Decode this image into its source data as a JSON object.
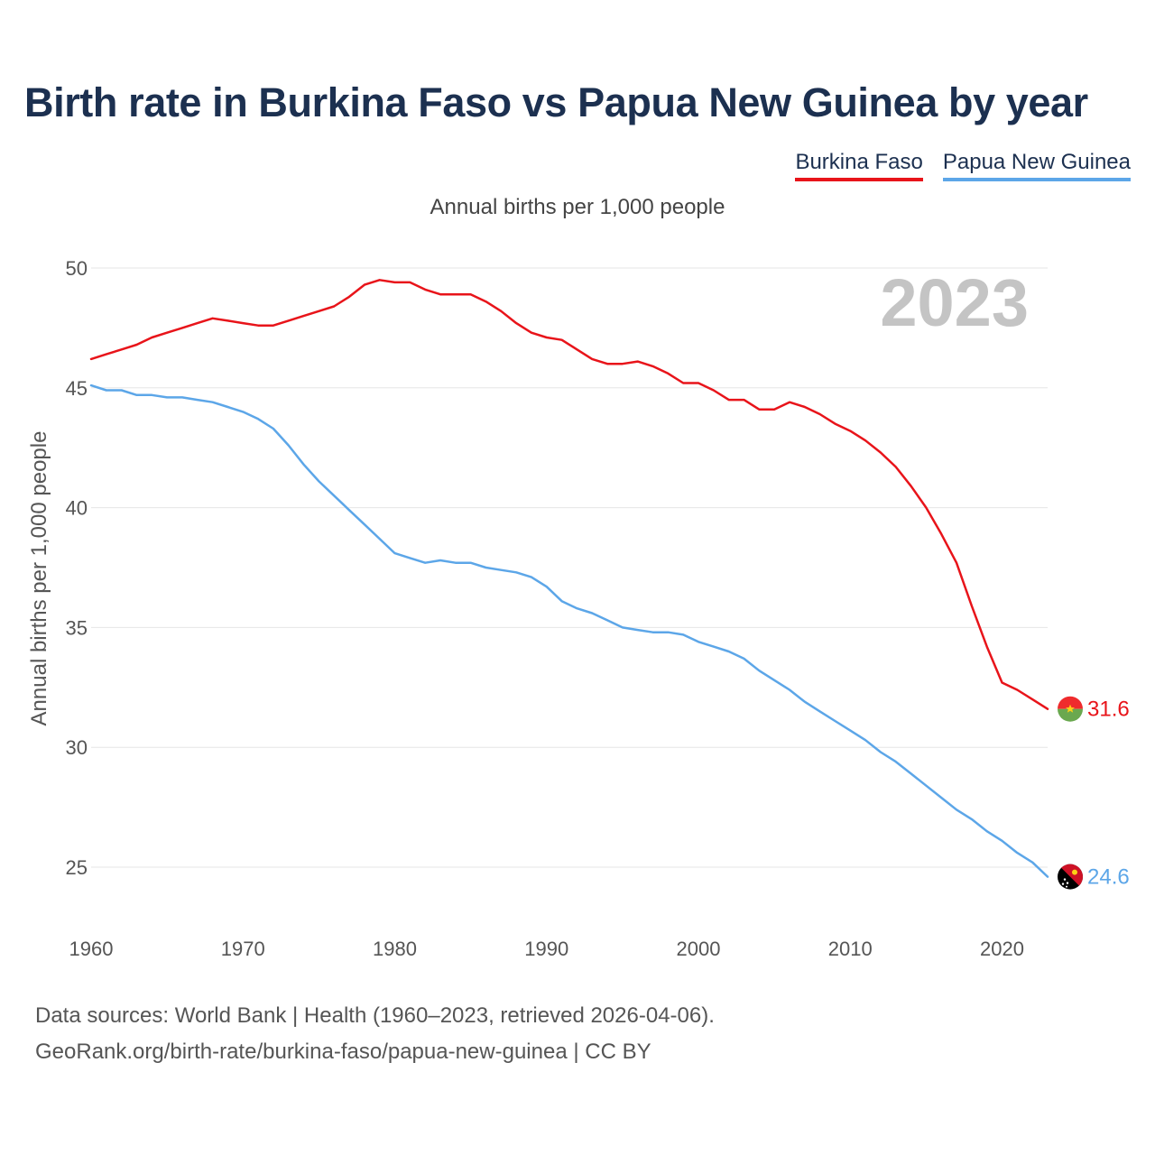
{
  "title": "Birth rate in Burkina Faso vs Papua New Guinea by year",
  "subtitle": "Annual births per 1,000 people",
  "legend": [
    {
      "label": "Burkina Faso",
      "color": "#e8141a"
    },
    {
      "label": "Papua New Guinea",
      "color": "#5ca6e8"
    }
  ],
  "year_display": "2023",
  "source_line1": "Data sources: World Bank | Health (1960–2023, retrieved 2026-04-06).",
  "source_line2": "GeoRank.org/birth-rate/burkina-faso/papua-new-guinea | CC BY",
  "chart_data": {
    "type": "line",
    "title": "Birth rate in Burkina Faso vs Papua New Guinea by year",
    "ylabel": "Annual births per 1,000 people",
    "xlabel": "",
    "xlim": [
      1960,
      2023
    ],
    "ylim": [
      23,
      50.5
    ],
    "xticks": [
      1960,
      1970,
      1980,
      1990,
      2000,
      2010,
      2020
    ],
    "yticks": [
      25,
      30,
      35,
      40,
      45,
      50
    ],
    "grid": true,
    "legend_position": "top-right",
    "x": [
      1960,
      1961,
      1962,
      1963,
      1964,
      1965,
      1966,
      1967,
      1968,
      1969,
      1970,
      1971,
      1972,
      1973,
      1974,
      1975,
      1976,
      1977,
      1978,
      1979,
      1980,
      1981,
      1982,
      1983,
      1984,
      1985,
      1986,
      1987,
      1988,
      1989,
      1990,
      1991,
      1992,
      1993,
      1994,
      1995,
      1996,
      1997,
      1998,
      1999,
      2000,
      2001,
      2002,
      2003,
      2004,
      2005,
      2006,
      2007,
      2008,
      2009,
      2010,
      2011,
      2012,
      2013,
      2014,
      2015,
      2016,
      2017,
      2018,
      2019,
      2020,
      2021,
      2022,
      2023
    ],
    "series": [
      {
        "name": "Burkina Faso",
        "color": "#e8141a",
        "end_label": "31.6",
        "values": [
          46.2,
          46.4,
          46.6,
          46.8,
          47.1,
          47.3,
          47.5,
          47.7,
          47.9,
          47.8,
          47.7,
          47.6,
          47.6,
          47.8,
          48.0,
          48.2,
          48.4,
          48.8,
          49.3,
          49.5,
          49.4,
          49.4,
          49.1,
          48.9,
          48.9,
          48.9,
          48.6,
          48.2,
          47.7,
          47.3,
          47.1,
          47.0,
          46.6,
          46.2,
          46.0,
          46.0,
          46.1,
          45.9,
          45.6,
          45.2,
          45.2,
          44.9,
          44.5,
          44.5,
          44.1,
          44.1,
          44.4,
          44.2,
          43.9,
          43.5,
          43.2,
          42.8,
          42.3,
          41.7,
          40.9,
          40.0,
          38.9,
          37.7,
          35.9,
          34.2,
          32.7,
          32.4,
          32.0,
          31.6
        ]
      },
      {
        "name": "Papua New Guinea",
        "color": "#5ca6e8",
        "end_label": "24.6",
        "values": [
          45.1,
          44.9,
          44.9,
          44.7,
          44.7,
          44.6,
          44.6,
          44.5,
          44.4,
          44.2,
          44.0,
          43.7,
          43.3,
          42.6,
          41.8,
          41.1,
          40.5,
          39.9,
          39.3,
          38.7,
          38.1,
          37.9,
          37.7,
          37.8,
          37.7,
          37.7,
          37.5,
          37.4,
          37.3,
          37.1,
          36.7,
          36.1,
          35.8,
          35.6,
          35.3,
          35.0,
          34.9,
          34.8,
          34.8,
          34.7,
          34.4,
          34.2,
          34.0,
          33.7,
          33.2,
          32.8,
          32.4,
          31.9,
          31.5,
          31.1,
          30.7,
          30.3,
          29.8,
          29.4,
          28.9,
          28.4,
          27.9,
          27.4,
          27.0,
          26.5,
          26.1,
          25.6,
          25.2,
          24.6
        ]
      }
    ]
  }
}
